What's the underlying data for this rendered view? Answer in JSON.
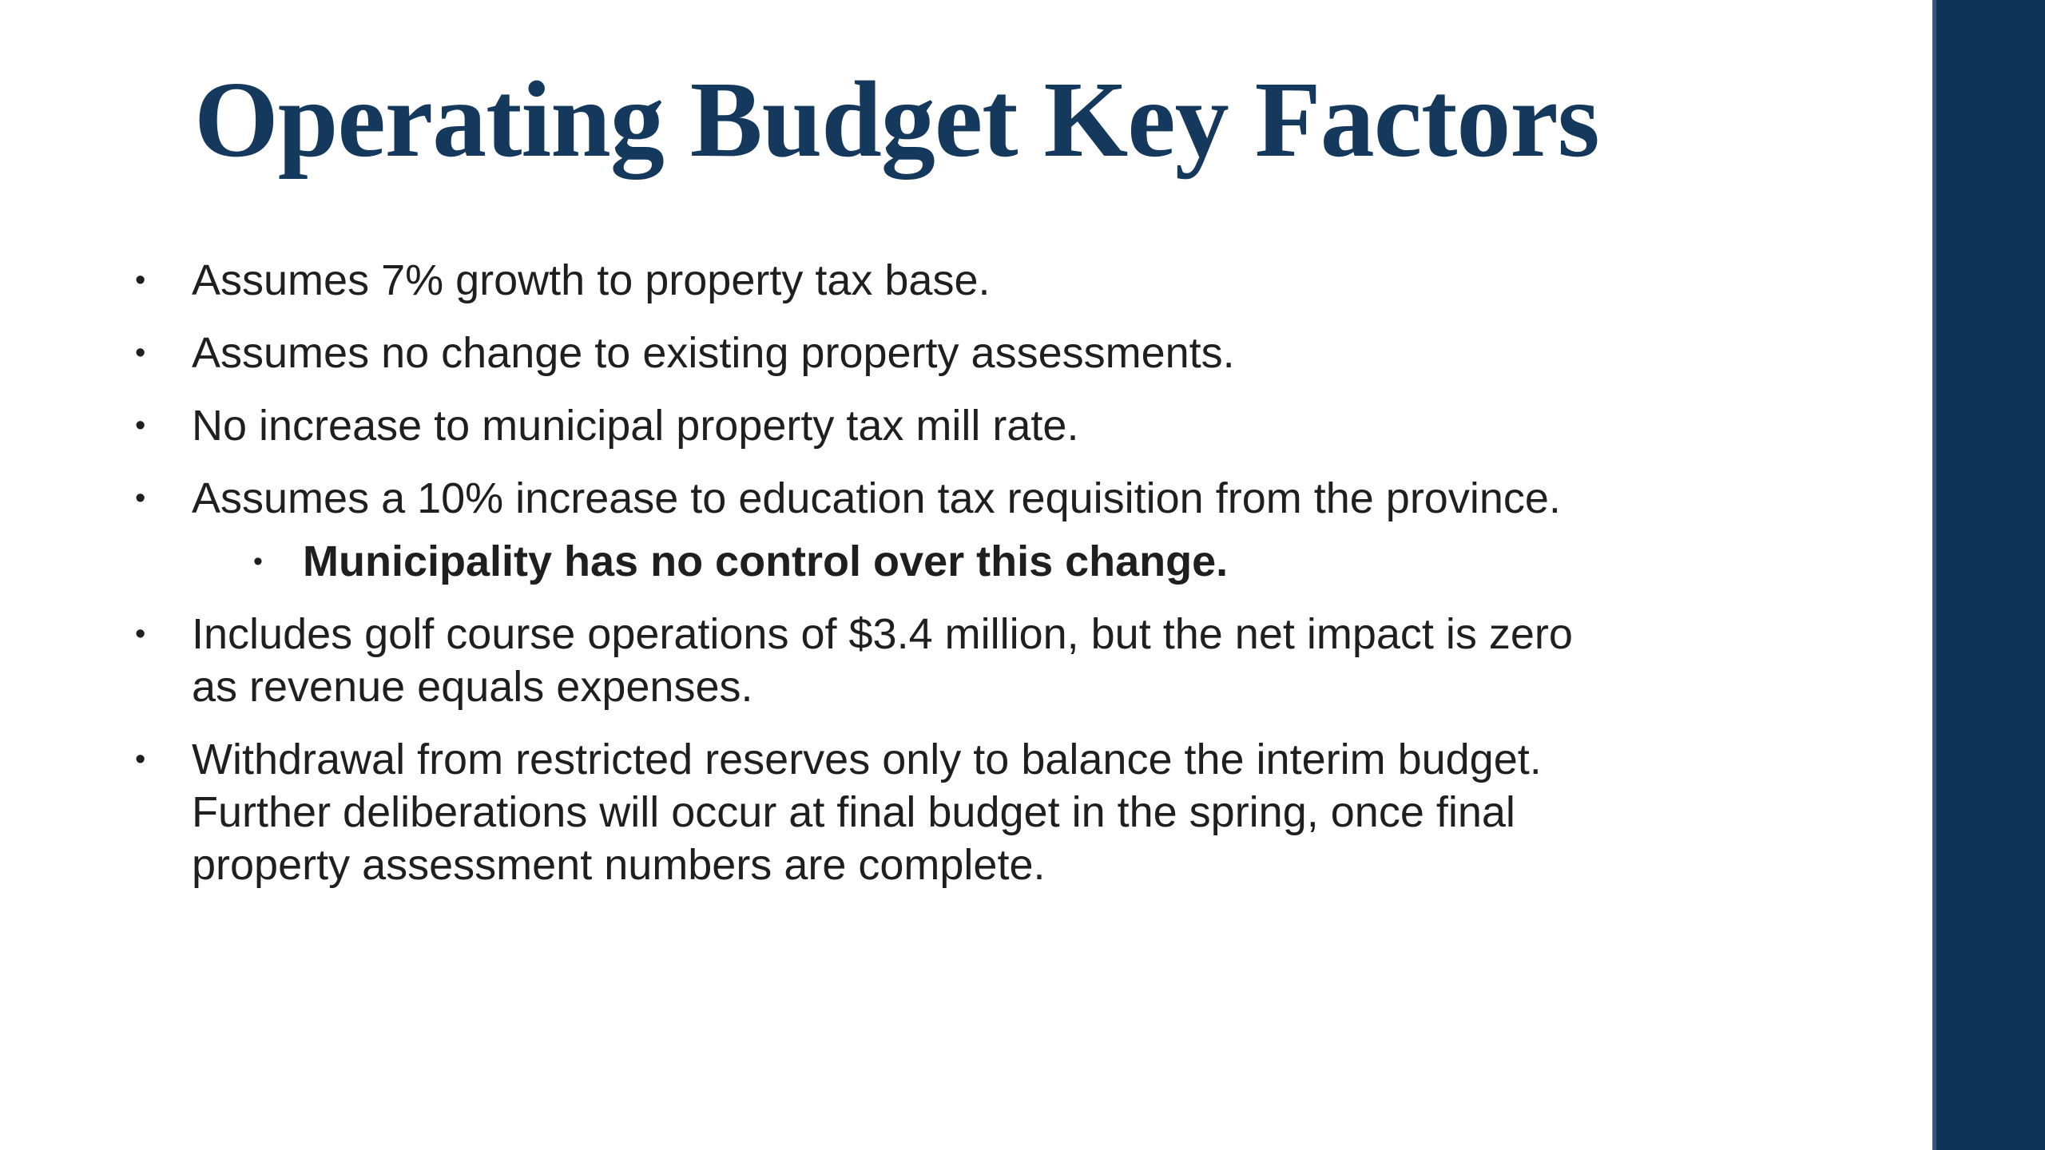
{
  "slide": {
    "title": "Operating Budget Key Factors",
    "bullet_glyph": "•",
    "bullets": [
      {
        "level": 1,
        "bold": false,
        "text": "Assumes 7% growth to property tax base."
      },
      {
        "level": 1,
        "bold": false,
        "text": "Assumes no change to existing property assessments."
      },
      {
        "level": 1,
        "bold": false,
        "text": "No increase to municipal property tax mill rate."
      },
      {
        "level": 1,
        "bold": false,
        "text": "Assumes a 10% increase to education tax requisition from the province."
      },
      {
        "level": 2,
        "bold": true,
        "text": "Municipality has no control over this change."
      },
      {
        "level": 1,
        "bold": false,
        "text": "Includes golf course operations of $3.4 million, but the net impact is zero\nas revenue equals expenses."
      },
      {
        "level": 1,
        "bold": false,
        "text": "Withdrawal from restricted reserves only to balance the interim budget.\nFurther deliberations will occur at final budget in the spring, once final\nproperty assessment numbers are complete."
      }
    ],
    "colors": {
      "background": "#FFFFFF",
      "title": "#14395C",
      "body": "#1F1F1F",
      "accent_bar": "#0E3253",
      "accent_bar_edge": "#35567F"
    }
  }
}
